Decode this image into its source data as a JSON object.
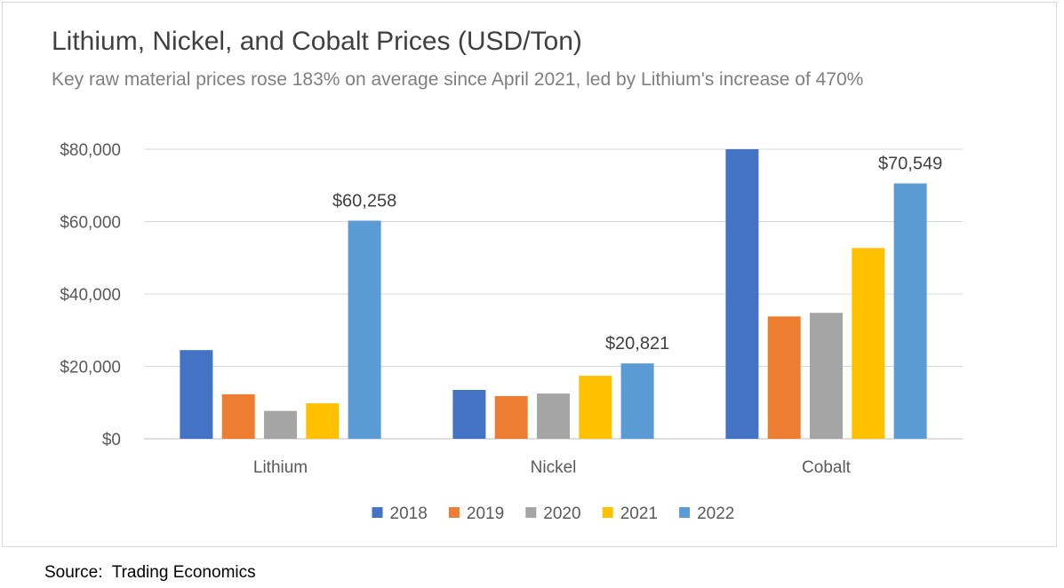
{
  "chart_data": {
    "type": "bar",
    "title": "Lithium, Nickel, and Cobalt Prices (USD/Ton)",
    "subtitle": "Key raw material prices rose 183% on average since April 2021, led by Lithium's increase of 470%",
    "categories": [
      "Lithium",
      "Nickel",
      "Cobalt"
    ],
    "series": [
      {
        "name": "2018",
        "color": "#4472C4",
        "values": [
          24500,
          13500,
          80000
        ]
      },
      {
        "name": "2019",
        "color": "#ED7D31",
        "values": [
          12300,
          11800,
          33800
        ]
      },
      {
        "name": "2020",
        "color": "#A5A5A5",
        "values": [
          7700,
          12500,
          34800
        ]
      },
      {
        "name": "2021",
        "color": "#FFC000",
        "values": [
          9800,
          17400,
          52700
        ]
      },
      {
        "name": "2022",
        "color": "#5B9BD5",
        "values": [
          60258,
          20821,
          70549
        ]
      }
    ],
    "data_labels": [
      {
        "category": "Lithium",
        "series": "2022",
        "value": 60258,
        "text": "$60,258"
      },
      {
        "category": "Nickel",
        "series": "2022",
        "value": 20821,
        "text": "$20,821"
      },
      {
        "category": "Cobalt",
        "series": "2022",
        "value": 70549,
        "text": "$70,549"
      }
    ],
    "yticks": [
      {
        "value": 0,
        "label": "$0"
      },
      {
        "value": 20000,
        "label": "$20,000"
      },
      {
        "value": 40000,
        "label": "$40,000"
      },
      {
        "value": 60000,
        "label": "$60,000"
      },
      {
        "value": 80000,
        "label": "$80,000"
      }
    ],
    "ylim": [
      0,
      80000
    ],
    "xlabel": "",
    "ylabel": "",
    "grid": true,
    "legend_position": "bottom"
  },
  "source": "Source:  Trading Economics"
}
